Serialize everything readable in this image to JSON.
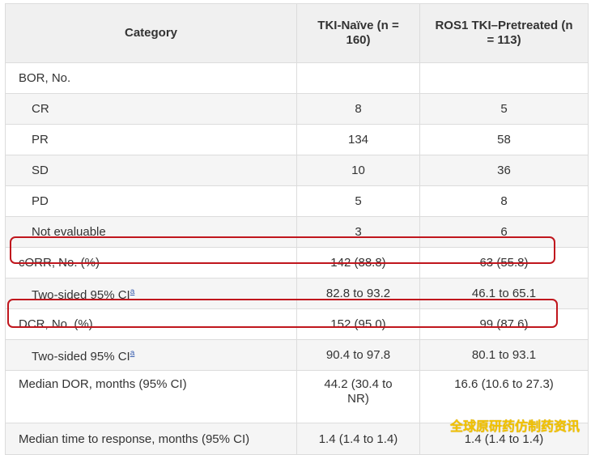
{
  "header": {
    "category": "Category",
    "col_a": "TKI-Naïve (n = 160)",
    "col_b": "ROS1 TKI–Pretreated (n = 113)"
  },
  "rows": [
    {
      "label": "BOR, No.",
      "a": "",
      "b": "",
      "indent": false
    },
    {
      "label": "CR",
      "a": "8",
      "b": "5",
      "indent": true
    },
    {
      "label": "PR",
      "a": "134",
      "b": "58",
      "indent": true
    },
    {
      "label": "SD",
      "a": "10",
      "b": "36",
      "indent": true
    },
    {
      "label": "PD",
      "a": "5",
      "b": "8",
      "indent": true
    },
    {
      "label": "Not evaluable",
      "a": "3",
      "b": "6",
      "indent": true
    },
    {
      "label": "cORR, No. (%)",
      "a": "142 (88.8)",
      "b": "63 (55.8)",
      "indent": false
    },
    {
      "label": "Two-sided 95% CI",
      "sup": "a",
      "a": "82.8 to 93.2",
      "b": "46.1 to 65.1",
      "indent": true
    },
    {
      "label": "DCR, No. (%)",
      "a": "152 (95.0)",
      "b": "99 (87.6)",
      "indent": false
    },
    {
      "label": "Two-sided 95% CI",
      "sup": "a",
      "a": "90.4 to 97.8",
      "b": "80.1 to 93.1",
      "indent": true
    },
    {
      "label": "Median DOR, months (95% CI)",
      "a": "44.2 (30.4 to NR)",
      "b": "16.6 (10.6 to 27.3)",
      "indent": false
    },
    {
      "label": "Median time to response, months (95% CI)",
      "a": "1.4 (1.4 to 1.4)",
      "b": "1.4 (1.4 to 1.4)",
      "indent": false
    }
  ],
  "watermark": "全球原研药仿制药资讯",
  "colors": {
    "highlight": "#c0161d",
    "header_bg": "#f0f0f0",
    "stripe": "#f5f5f5",
    "watermark": "#f2c200"
  }
}
